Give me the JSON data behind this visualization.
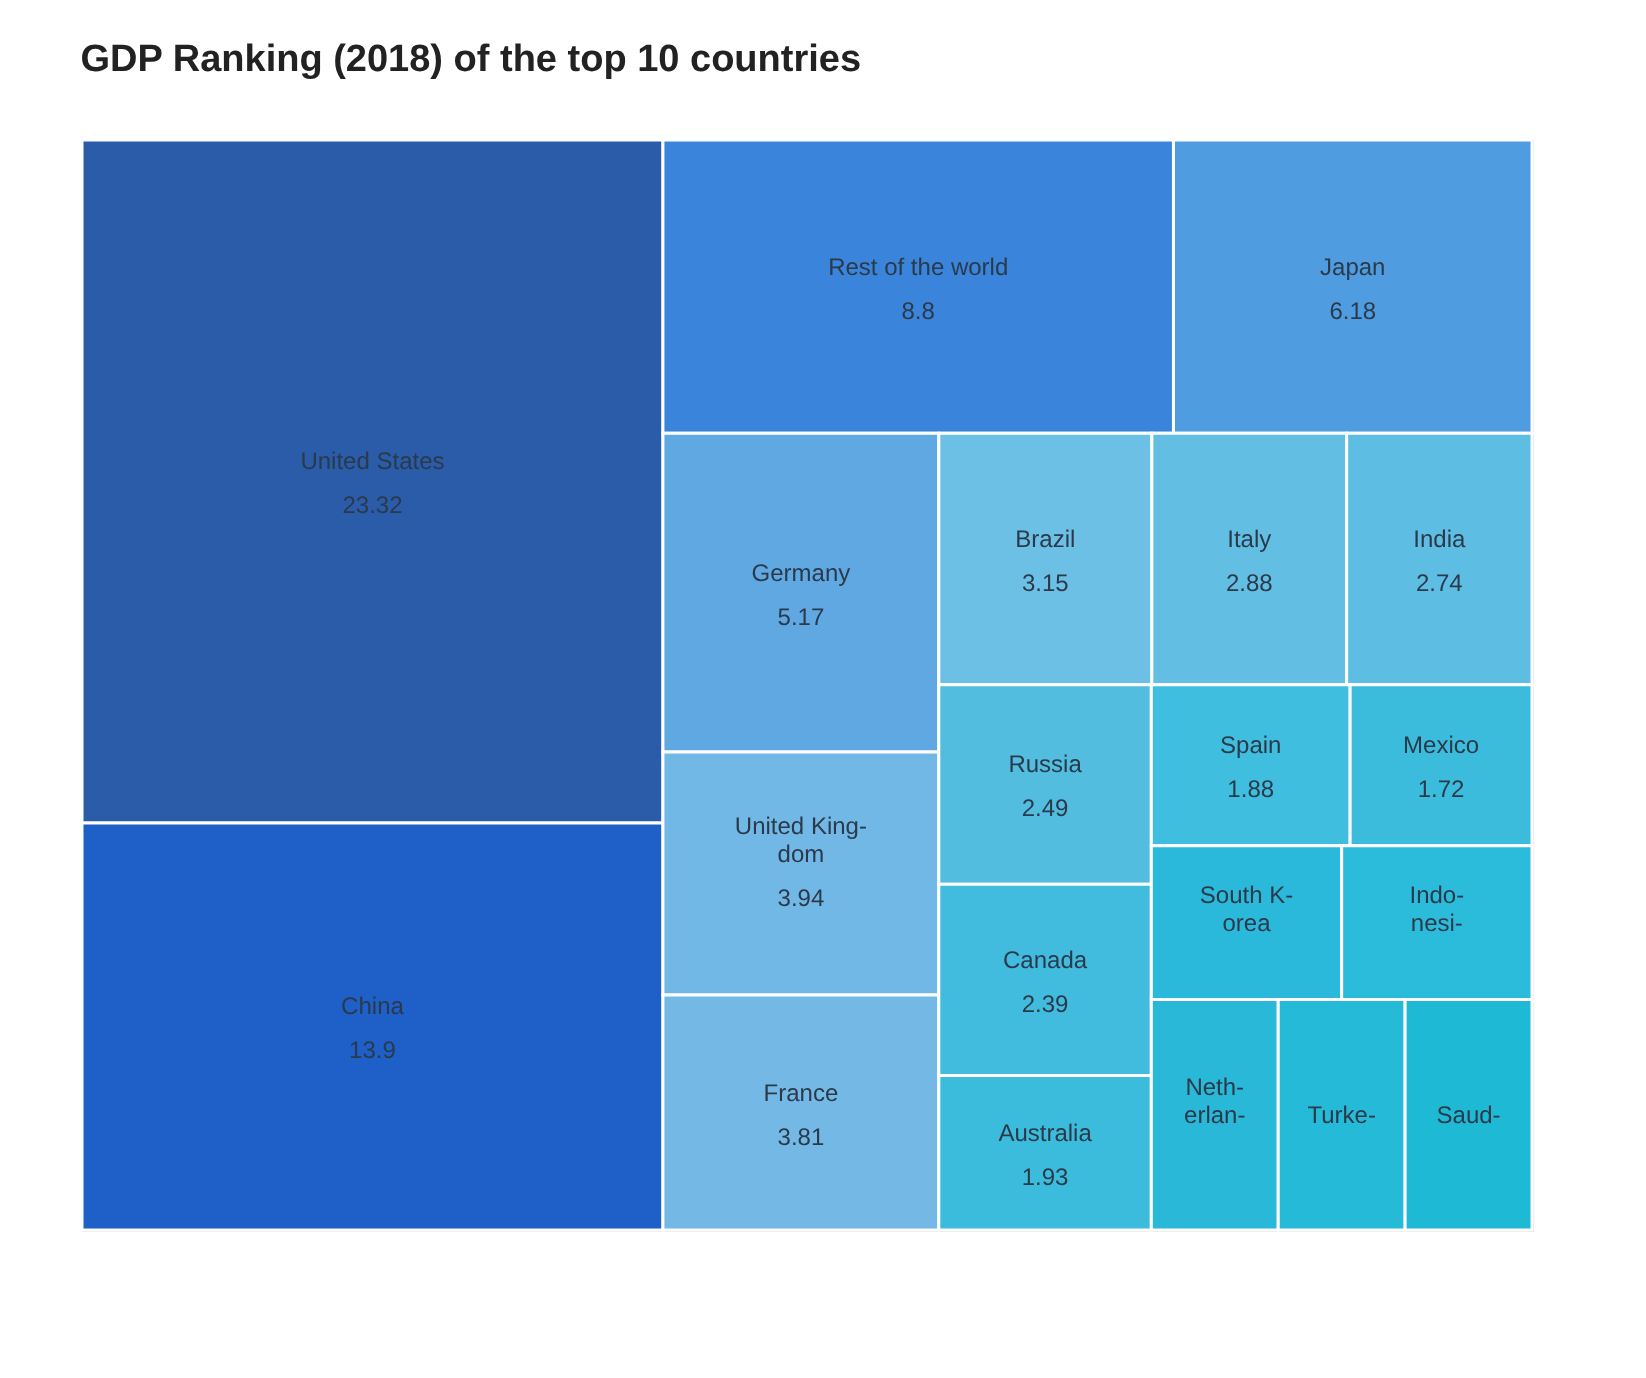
{
  "chart_data": {
    "type": "other",
    "title": "GDP Ranking (2018) of the top 10 countries",
    "categories": [
      "United States",
      "China",
      "Rest of the world",
      "Japan",
      "Germany",
      "United King-\ndom",
      "France",
      "Brazil",
      "Italy",
      "India",
      "Russia",
      "Canada",
      "Australia",
      "Spain",
      "Mexico",
      "South K-\norea",
      "Indo-\nnesi-",
      "Neth-\nerlan-",
      "Turke-",
      "Saud-"
    ],
    "values": [
      23.32,
      13.9,
      8.8,
      6.18,
      5.17,
      3.94,
      3.81,
      3.15,
      2.88,
      2.74,
      2.49,
      2.39,
      1.93,
      1.88,
      1.72,
      null,
      null,
      null,
      null,
      null
    ],
    "colors": [
      "#2a5caa",
      "#1e5fc8",
      "#3a84dc",
      "#4f9de0",
      "#5fa8e2",
      "#72b8e6",
      "#74b9e6",
      "#6cc0e6",
      "#62bfe3",
      "#5ebde3",
      "#52bddf",
      "#41bcdf",
      "#3bbcdc",
      "#3fbedf",
      "#3cbcdc",
      "#2ab9da",
      "#2bbcdb",
      "#2ab8d8",
      "#25bad8",
      "#1ebad5"
    ],
    "data_labels": true
  }
}
